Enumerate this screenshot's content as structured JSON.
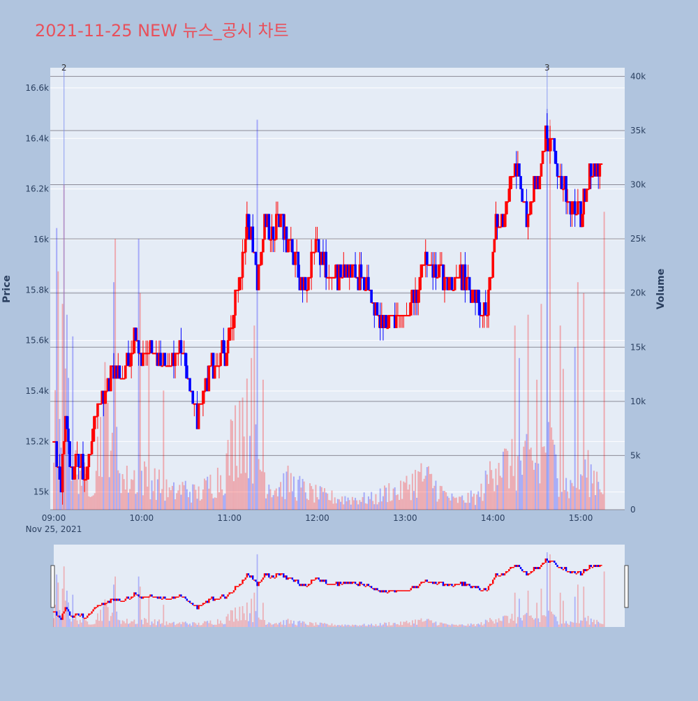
{
  "chart_data": {
    "type": "candlestick",
    "title": "2021-11-25 NEW 뉴스_공시 차트",
    "date_label": "Nov 25, 2021",
    "ylabel": "Price",
    "y2label": "Volume",
    "ylim": [
      14930,
      16680
    ],
    "y2lim": [
      0,
      40800
    ],
    "x_range": [
      "09:00",
      "15:30"
    ],
    "price_ticks": [
      {
        "value": 15000,
        "label": "15k"
      },
      {
        "value": 15200,
        "label": "15.2k"
      },
      {
        "value": 15400,
        "label": "15.4k"
      },
      {
        "value": 15600,
        "label": "15.6k"
      },
      {
        "value": 15800,
        "label": "15.8k"
      },
      {
        "value": 16000,
        "label": "16k"
      },
      {
        "value": 16200,
        "label": "16.2k"
      },
      {
        "value": 16400,
        "label": "16.4k"
      },
      {
        "value": 16600,
        "label": "16.6k"
      }
    ],
    "volume_ticks": [
      {
        "value": 0,
        "label": "0"
      },
      {
        "value": 5000,
        "label": "5k"
      },
      {
        "value": 10000,
        "label": "10k"
      },
      {
        "value": 15000,
        "label": "15k"
      },
      {
        "value": 20000,
        "label": "20k"
      },
      {
        "value": 25000,
        "label": "25k"
      },
      {
        "value": 30000,
        "label": "30k"
      },
      {
        "value": 35000,
        "label": "35k"
      },
      {
        "value": 40000,
        "label": "40k"
      }
    ],
    "time_ticks": [
      {
        "minute": 0,
        "label": "09:00"
      },
      {
        "minute": 60,
        "label": "10:00"
      },
      {
        "minute": 120,
        "label": "11:00"
      },
      {
        "minute": 180,
        "label": "12:00"
      },
      {
        "minute": 240,
        "label": "13:00"
      },
      {
        "minute": 300,
        "label": "14:00"
      },
      {
        "minute": 360,
        "label": "15:00"
      }
    ],
    "news_markers": [
      {
        "minute": 7,
        "label": "2"
      },
      {
        "minute": 337,
        "label": "3"
      }
    ],
    "colors": {
      "up": "#ff0000",
      "down": "#0000ff"
    },
    "price_path": [
      [
        0,
        15200
      ],
      [
        5,
        15000
      ],
      [
        8,
        15300
      ],
      [
        12,
        15050
      ],
      [
        16,
        15130
      ],
      [
        22,
        15060
      ],
      [
        28,
        15250
      ],
      [
        32,
        15360
      ],
      [
        36,
        15420
      ],
      [
        40,
        15500
      ],
      [
        45,
        15460
      ],
      [
        52,
        15530
      ],
      [
        56,
        15640
      ],
      [
        60,
        15520
      ],
      [
        66,
        15560
      ],
      [
        72,
        15510
      ],
      [
        78,
        15470
      ],
      [
        84,
        15550
      ],
      [
        88,
        15560
      ],
      [
        94,
        15400
      ],
      [
        98,
        15280
      ],
      [
        102,
        15380
      ],
      [
        107,
        15480
      ],
      [
        112,
        15510
      ],
      [
        118,
        15560
      ],
      [
        124,
        15780
      ],
      [
        128,
        15880
      ],
      [
        132,
        16050
      ],
      [
        136,
        15990
      ],
      [
        139,
        15830
      ],
      [
        144,
        16050
      ],
      [
        148,
        16030
      ],
      [
        154,
        16100
      ],
      [
        158,
        16020
      ],
      [
        162,
        15970
      ],
      [
        166,
        15900
      ],
      [
        170,
        15790
      ],
      [
        174,
        15850
      ],
      [
        179,
        15970
      ],
      [
        184,
        15900
      ],
      [
        188,
        15830
      ],
      [
        193,
        15860
      ],
      [
        198,
        15880
      ],
      [
        204,
        15880
      ],
      [
        210,
        15840
      ],
      [
        216,
        15780
      ],
      [
        220,
        15700
      ],
      [
        225,
        15650
      ],
      [
        230,
        15680
      ],
      [
        236,
        15720
      ],
      [
        242,
        15710
      ],
      [
        248,
        15800
      ],
      [
        252,
        15920
      ],
      [
        258,
        15890
      ],
      [
        264,
        15860
      ],
      [
        270,
        15840
      ],
      [
        276,
        15860
      ],
      [
        282,
        15830
      ],
      [
        288,
        15800
      ],
      [
        293,
        15700
      ],
      [
        298,
        15800
      ],
      [
        302,
        16050
      ],
      [
        308,
        16080
      ],
      [
        312,
        16220
      ],
      [
        316,
        16310
      ],
      [
        320,
        16180
      ],
      [
        324,
        16050
      ],
      [
        328,
        16210
      ],
      [
        332,
        16280
      ],
      [
        336,
        16400
      ],
      [
        340,
        16380
      ],
      [
        344,
        16250
      ],
      [
        348,
        16200
      ],
      [
        352,
        16150
      ],
      [
        356,
        16120
      ],
      [
        360,
        16080
      ],
      [
        364,
        16220
      ],
      [
        368,
        16280
      ],
      [
        372,
        16260
      ],
      [
        374,
        16270
      ]
    ],
    "volume_profile": [
      [
        0,
        6000
      ],
      [
        5,
        12000
      ],
      [
        8,
        20000
      ],
      [
        12,
        3500
      ],
      [
        16,
        4000
      ],
      [
        22,
        2500
      ],
      [
        28,
        3000
      ],
      [
        34,
        9000
      ],
      [
        40,
        8000
      ],
      [
        44,
        5000
      ],
      [
        48,
        2500
      ],
      [
        56,
        3000
      ],
      [
        60,
        3000
      ],
      [
        70,
        2500
      ],
      [
        80,
        1500
      ],
      [
        90,
        2000
      ],
      [
        96,
        1500
      ],
      [
        100,
        1500
      ],
      [
        108,
        2500
      ],
      [
        114,
        3000
      ],
      [
        118,
        4000
      ],
      [
        124,
        7000
      ],
      [
        128,
        9000
      ],
      [
        134,
        7000
      ],
      [
        140,
        4500
      ],
      [
        146,
        2500
      ],
      [
        152,
        2000
      ],
      [
        160,
        2500
      ],
      [
        168,
        2000
      ],
      [
        176,
        1500
      ],
      [
        186,
        1200
      ],
      [
        196,
        1000
      ],
      [
        206,
        1000
      ],
      [
        214,
        1000
      ],
      [
        220,
        1000
      ],
      [
        230,
        1800
      ],
      [
        236,
        1500
      ],
      [
        244,
        2500
      ],
      [
        252,
        3000
      ],
      [
        258,
        2500
      ],
      [
        266,
        1500
      ],
      [
        274,
        800
      ],
      [
        282,
        1000
      ],
      [
        290,
        1200
      ],
      [
        296,
        2500
      ],
      [
        302,
        5000
      ],
      [
        308,
        4000
      ],
      [
        314,
        4000
      ],
      [
        320,
        4000
      ],
      [
        326,
        4500
      ],
      [
        332,
        3500
      ],
      [
        336,
        6000
      ],
      [
        340,
        5000
      ],
      [
        346,
        3000
      ],
      [
        352,
        2000
      ],
      [
        358,
        2500
      ],
      [
        364,
        3500
      ],
      [
        368,
        3000
      ],
      [
        372,
        3000
      ],
      [
        374,
        2500
      ]
    ],
    "volume_spikes": [
      [
        2,
        26000
      ],
      [
        3,
        22000
      ],
      [
        6,
        19000
      ],
      [
        7,
        30000
      ],
      [
        9,
        18000
      ],
      [
        13,
        16000
      ],
      [
        41,
        21000
      ],
      [
        42,
        25000
      ],
      [
        58,
        25000
      ],
      [
        59,
        20000
      ],
      [
        65,
        15500
      ],
      [
        75,
        11000
      ],
      [
        135,
        14000
      ],
      [
        137,
        17000
      ],
      [
        139,
        36000
      ],
      [
        143,
        12000
      ],
      [
        315,
        17000
      ],
      [
        318,
        14000
      ],
      [
        324,
        18000
      ],
      [
        330,
        12000
      ],
      [
        333,
        19000
      ],
      [
        337,
        37000
      ],
      [
        339,
        36000
      ],
      [
        346,
        17000
      ],
      [
        348,
        13000
      ],
      [
        356,
        15000
      ],
      [
        358,
        21000
      ],
      [
        362,
        20000
      ],
      [
        376,
        27500
      ]
    ],
    "intraday_high": 16470,
    "intraday_low": 14980
  }
}
